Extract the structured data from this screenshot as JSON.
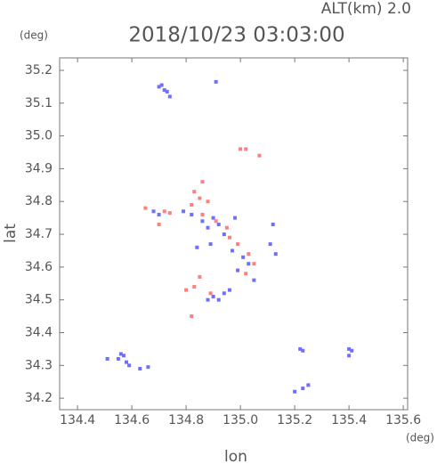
{
  "chart_data": {
    "type": "scatter",
    "title": "2018/10/23 03:03:00",
    "annotation": "ALT(km) 2.0",
    "y_unit": "(deg)",
    "x_unit": "(deg)",
    "xlabel": "lon",
    "ylabel": "lat",
    "xlim": [
      134.334,
      135.616
    ],
    "ylim": [
      34.165,
      35.238
    ],
    "xticks": [
      134.4,
      134.6,
      134.8,
      {
        "value": 135,
        "label": "135.0"
      },
      135.2,
      135.4,
      135.6
    ],
    "yticks": [
      34.2,
      34.3,
      34.4,
      34.5,
      34.6,
      34.7,
      34.8,
      34.9,
      {
        "value": 35,
        "label": "35.0"
      },
      35.1,
      35.2
    ],
    "series": [
      {
        "color": "#6f6fff",
        "x": [
          134.7,
          134.72,
          134.73,
          134.71,
          134.74,
          134.91,
          134.55,
          134.57,
          134.58,
          134.59,
          134.56,
          134.63,
          134.66,
          134.51,
          134.68,
          134.7,
          134.79,
          134.82,
          134.86,
          134.88,
          134.9,
          134.92,
          134.94,
          134.89,
          134.97,
          135.01,
          135.03,
          134.99,
          135.05,
          134.84,
          134.9,
          134.92,
          134.94,
          134.96,
          134.88,
          135.22,
          135.23,
          135.4,
          135.41,
          135.4,
          135.2,
          135.23,
          135.25,
          135.12,
          135.11,
          135.13,
          134.98
        ],
        "y": [
          35.15,
          35.14,
          35.135,
          35.155,
          35.12,
          35.165,
          34.32,
          34.33,
          34.31,
          34.3,
          34.335,
          34.29,
          34.295,
          34.32,
          34.77,
          34.76,
          34.77,
          34.76,
          34.74,
          34.72,
          34.75,
          34.73,
          34.7,
          34.67,
          34.65,
          34.63,
          34.61,
          34.59,
          34.56,
          34.66,
          34.51,
          34.5,
          34.52,
          34.53,
          34.5,
          34.35,
          34.345,
          34.35,
          34.345,
          34.33,
          34.22,
          34.23,
          34.24,
          34.73,
          34.67,
          34.64,
          34.75
        ]
      },
      {
        "color": "#ff7f7f",
        "x": [
          135.0,
          135.02,
          135.07,
          134.86,
          134.83,
          134.85,
          134.82,
          134.88,
          134.72,
          134.74,
          134.65,
          134.7,
          134.86,
          134.91,
          134.96,
          134.99,
          135.03,
          135.05,
          135.02,
          134.85,
          134.8,
          134.83,
          134.82,
          134.95,
          134.89
        ],
        "y": [
          34.96,
          34.96,
          34.94,
          34.86,
          34.83,
          34.81,
          34.79,
          34.8,
          34.77,
          34.765,
          34.78,
          34.73,
          34.76,
          34.74,
          34.69,
          34.67,
          34.64,
          34.61,
          34.58,
          34.57,
          34.53,
          34.54,
          34.45,
          34.72,
          34.52
        ]
      }
    ]
  }
}
